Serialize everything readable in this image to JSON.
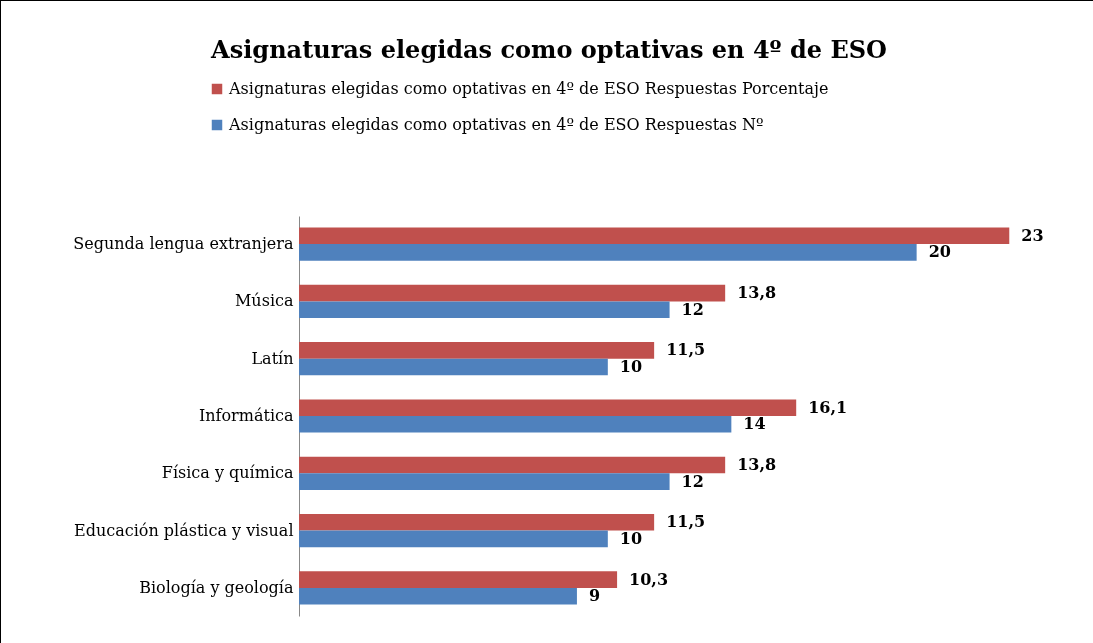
{
  "chart_data": {
    "type": "bar",
    "orientation": "horizontal",
    "title": "Asignaturas elegidas como optativas en 4º de ESO",
    "categories": [
      "Segunda lengua extranjera",
      "Música",
      "Latín",
      "Informática",
      "Física y química",
      "Educación plástica y visual",
      "Biología y geología"
    ],
    "series": [
      {
        "name": "Asignaturas elegidas como optativas en 4º de ESO Respuestas Porcentaje",
        "color": "#c0504d",
        "values": [
          23,
          13.8,
          11.5,
          16.1,
          13.8,
          11.5,
          10.3
        ],
        "value_labels": [
          "23",
          "13,8",
          "11,5",
          "16,1",
          "13,8",
          "11,5",
          "10,3"
        ]
      },
      {
        "name": "Asignaturas elegidas como optativas en 4º de ESO Respuestas Nº",
        "color": "#4f81bd",
        "values": [
          20,
          12,
          10,
          14,
          12,
          10,
          9
        ],
        "value_labels": [
          "20",
          "12",
          "10",
          "14",
          "12",
          "10",
          "9"
        ]
      }
    ],
    "legend": "top",
    "grid": false
  }
}
